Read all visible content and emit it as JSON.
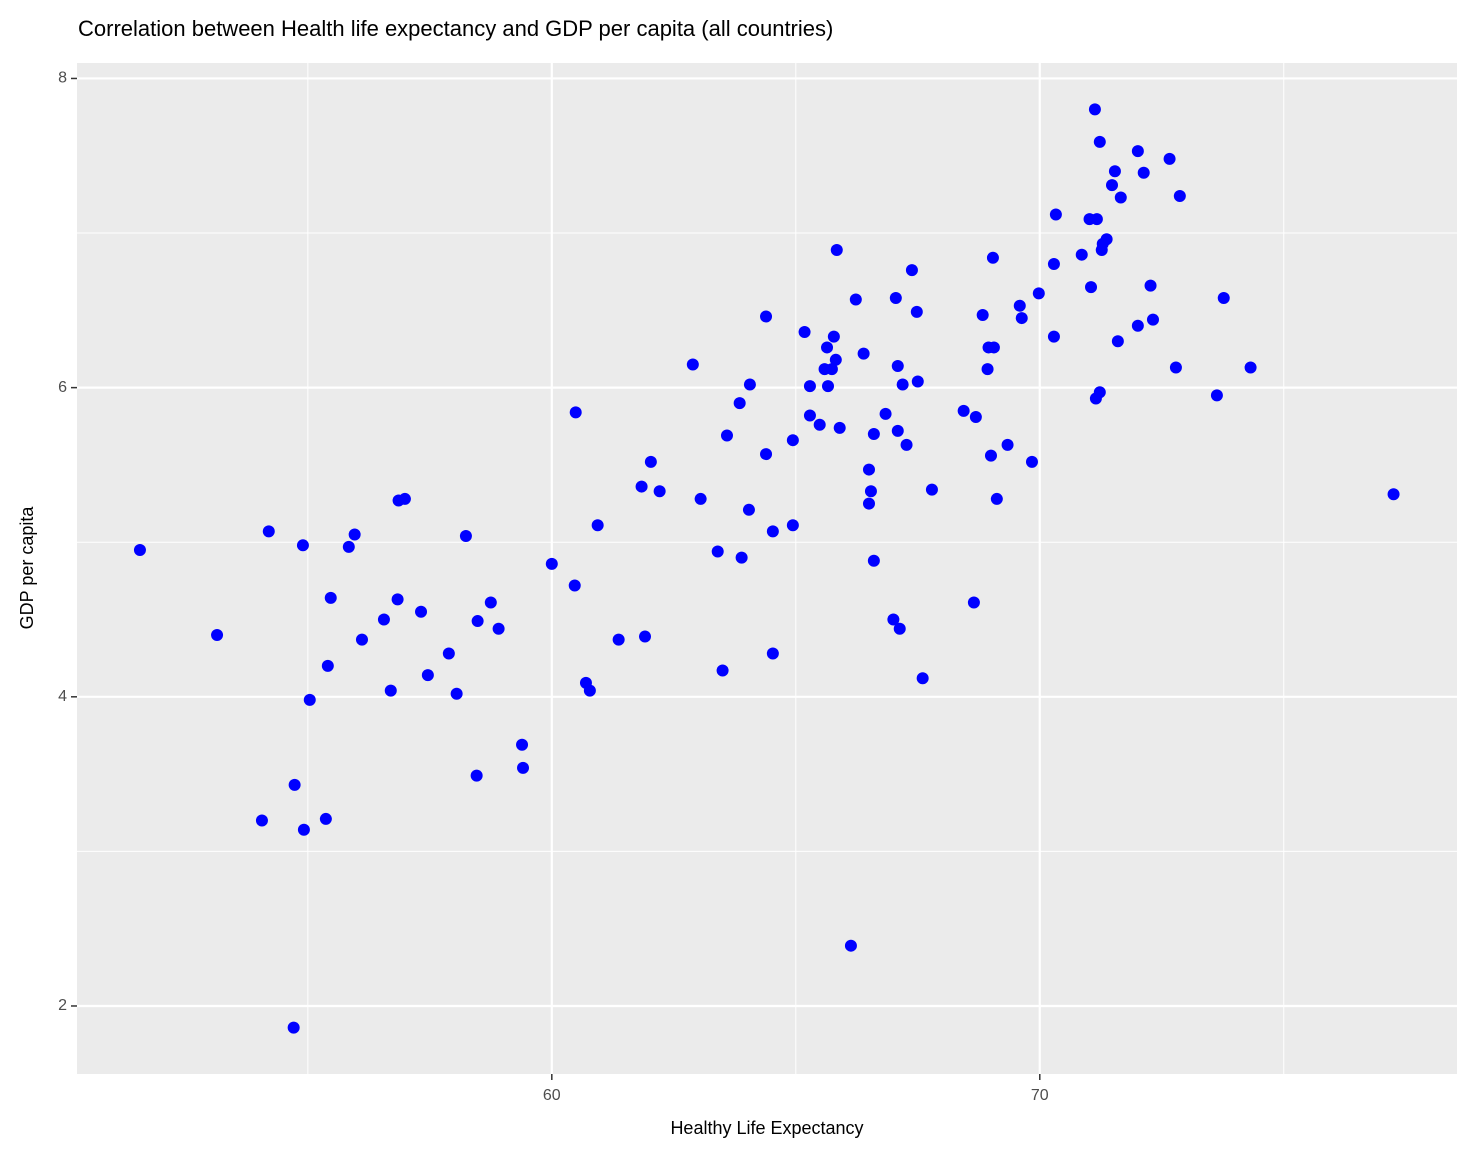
{
  "chart_data": {
    "type": "scatter",
    "title": "Correlation between Health life expectancy and GDP per capita (all countries)",
    "x_label": "Healthy Life Expectancy",
    "y_label": "GDP per capita",
    "color": "blue",
    "grid": true,
    "xlim": [
      50.27,
      78.55
    ],
    "ylim": [
      1.56,
      8.1
    ],
    "xticks": [
      60,
      70
    ],
    "yticks": [
      2,
      4,
      6,
      8
    ],
    "x": [
      51.56,
      53.14,
      54.2,
      54.06,
      54.73,
      54.71,
      54.92,
      54.9,
      55.04,
      55.37,
      55.41,
      55.47,
      55.84,
      55.96,
      56.11,
      56.56,
      56.7,
      56.84,
      56.86,
      56.99,
      57.32,
      57.46,
      57.89,
      58.05,
      58.24,
      58.48,
      58.46,
      58.75,
      58.91,
      59.39,
      59.41,
      60.0,
      60.47,
      60.49,
      60.7,
      60.78,
      60.94,
      61.37,
      61.91,
      61.84,
      62.03,
      62.21,
      62.89,
      63.05,
      63.4,
      63.5,
      63.59,
      63.85,
      63.89,
      64.06,
      64.04,
      64.39,
      64.39,
      64.53,
      64.53,
      64.94,
      64.94,
      65.18,
      65.29,
      65.29,
      65.49,
      65.59,
      65.64,
      65.66,
      65.74,
      65.78,
      65.82,
      65.84,
      65.9,
      66.13,
      66.23,
      66.39,
      66.5,
      66.5,
      66.54,
      66.6,
      66.6,
      66.84,
      67.0,
      67.05,
      67.09,
      67.09,
      67.13,
      67.19,
      67.27,
      67.38,
      67.48,
      67.5,
      67.6,
      67.79,
      68.44,
      68.65,
      68.69,
      68.83,
      68.95,
      68.93,
      69.04,
      69.0,
      69.06,
      69.12,
      69.34,
      69.59,
      69.63,
      69.84,
      69.98,
      70.29,
      70.29,
      70.33,
      70.86,
      71.02,
      71.05,
      71.13,
      71.17,
      71.15,
      71.23,
      71.23,
      71.27,
      71.29,
      71.37,
      71.48,
      71.54,
      71.6,
      71.66,
      72.01,
      72.01,
      72.13,
      72.27,
      72.32,
      72.66,
      72.79,
      72.87,
      73.63,
      73.77,
      74.32,
      77.25
    ],
    "values": [
      4.95,
      4.4,
      5.07,
      3.2,
      3.43,
      1.86,
      3.14,
      4.98,
      3.98,
      3.21,
      4.2,
      4.64,
      4.97,
      5.05,
      4.37,
      4.5,
      4.04,
      4.63,
      5.27,
      5.28,
      4.55,
      4.14,
      4.28,
      4.02,
      5.04,
      4.49,
      3.49,
      4.61,
      4.44,
      3.69,
      3.54,
      4.86,
      4.72,
      5.84,
      4.09,
      4.04,
      5.11,
      4.37,
      4.39,
      5.36,
      5.52,
      5.33,
      6.15,
      5.28,
      4.94,
      4.17,
      5.69,
      5.9,
      4.9,
      6.02,
      5.21,
      6.46,
      5.57,
      5.07,
      4.28,
      5.66,
      5.11,
      6.36,
      6.01,
      5.82,
      5.76,
      6.12,
      6.26,
      6.01,
      6.12,
      6.33,
      6.18,
      6.89,
      5.74,
      2.39,
      6.57,
      6.22,
      5.47,
      5.25,
      5.33,
      5.7,
      4.88,
      5.83,
      4.5,
      6.58,
      6.14,
      5.72,
      4.44,
      6.02,
      5.63,
      6.76,
      6.49,
      6.04,
      4.12,
      5.34,
      5.85,
      4.61,
      5.81,
      6.47,
      6.26,
      6.12,
      6.84,
      5.56,
      6.26,
      5.28,
      5.63,
      6.53,
      6.45,
      5.52,
      6.61,
      6.8,
      6.33,
      7.12,
      6.86,
      7.09,
      6.65,
      7.8,
      7.09,
      5.93,
      7.59,
      5.97,
      6.89,
      6.93,
      6.96,
      7.31,
      7.4,
      6.3,
      7.23,
      6.4,
      7.53,
      7.39,
      6.66,
      6.44,
      7.48,
      6.13,
      7.24,
      5.95,
      6.58,
      6.13,
      5.31
    ]
  }
}
